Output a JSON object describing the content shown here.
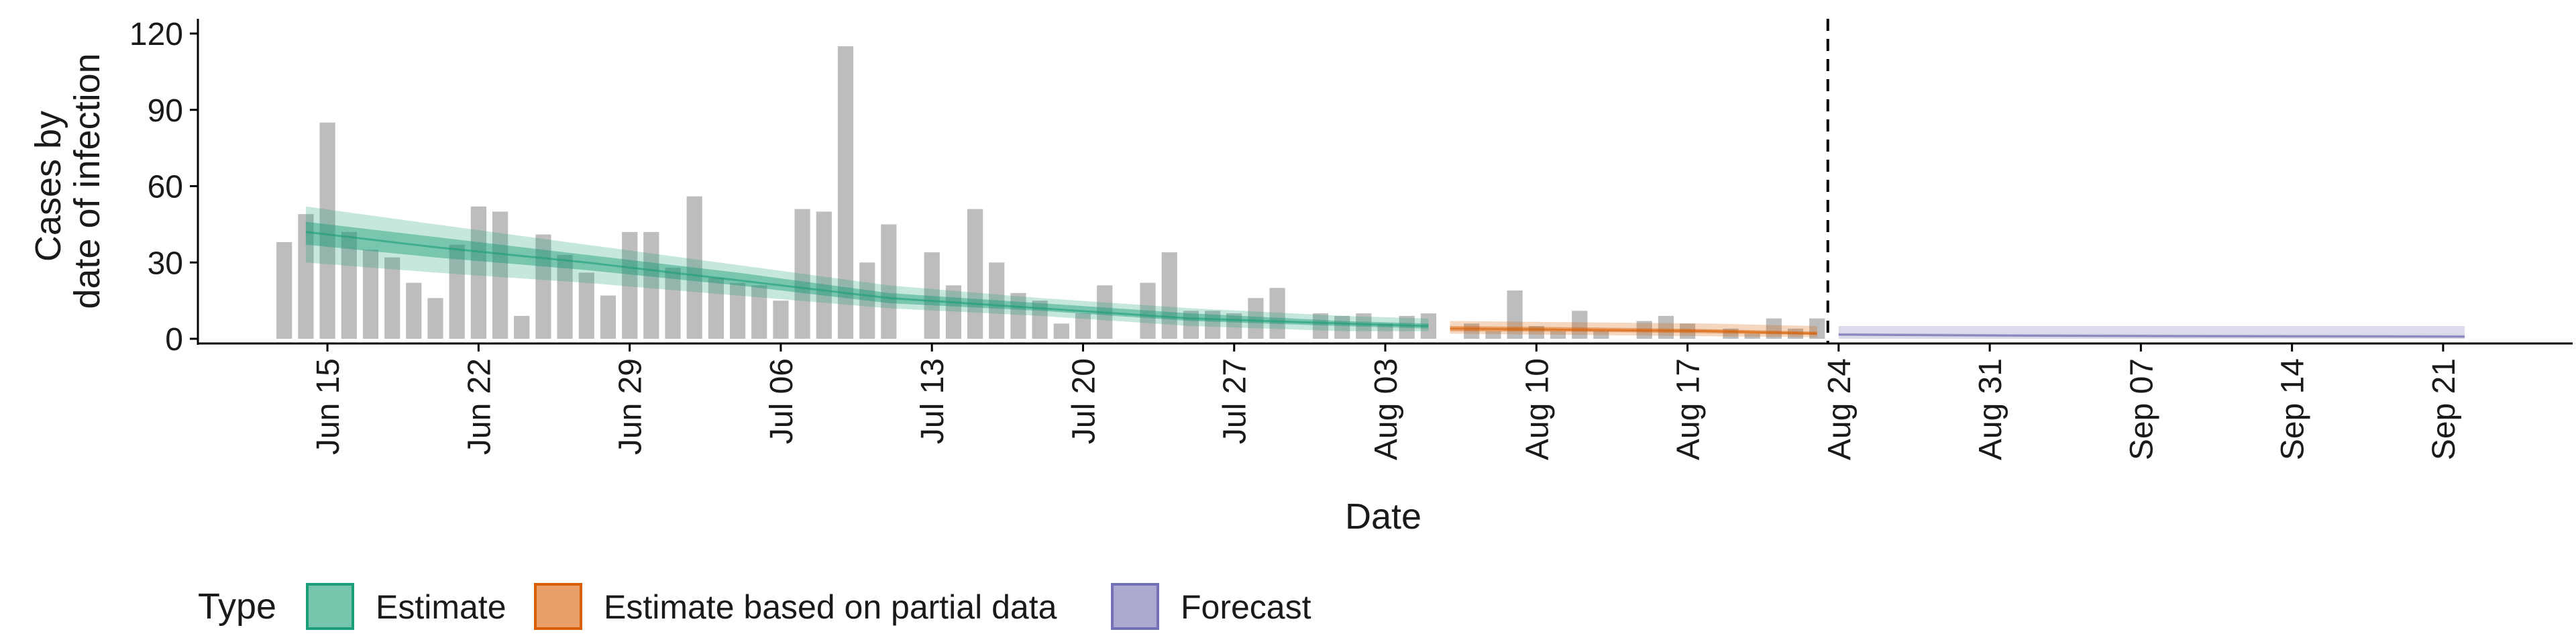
{
  "chart_data": {
    "type": "bar",
    "xlabel": "Date",
    "ylabel_lines": [
      "Cases by",
      "date of infection"
    ],
    "ylim": [
      0,
      120
    ],
    "yticks": [
      0,
      30,
      60,
      90,
      120
    ],
    "x_range": [
      "2020-06-09",
      "2020-09-27"
    ],
    "xticks": [
      {
        "date": "2020-06-15",
        "label": "Jun 15"
      },
      {
        "date": "2020-06-22",
        "label": "Jun 22"
      },
      {
        "date": "2020-06-29",
        "label": "Jun 29"
      },
      {
        "date": "2020-07-06",
        "label": "Jul 06"
      },
      {
        "date": "2020-07-13",
        "label": "Jul 13"
      },
      {
        "date": "2020-07-20",
        "label": "Jul 20"
      },
      {
        "date": "2020-07-27",
        "label": "Jul 27"
      },
      {
        "date": "2020-08-03",
        "label": "Aug 03"
      },
      {
        "date": "2020-08-10",
        "label": "Aug 10"
      },
      {
        "date": "2020-08-17",
        "label": "Aug 17"
      },
      {
        "date": "2020-08-24",
        "label": "Aug 24"
      },
      {
        "date": "2020-08-31",
        "label": "Aug 31"
      },
      {
        "date": "2020-09-07",
        "label": "Sep 07"
      },
      {
        "date": "2020-09-14",
        "label": "Sep 14"
      },
      {
        "date": "2020-09-21",
        "label": "Sep 21"
      }
    ],
    "bars": {
      "color": "#bdbdbd",
      "x": [
        "2020-06-13",
        "2020-06-14",
        "2020-06-15",
        "2020-06-16",
        "2020-06-17",
        "2020-06-18",
        "2020-06-19",
        "2020-06-20",
        "2020-06-21",
        "2020-06-22",
        "2020-06-23",
        "2020-06-24",
        "2020-06-25",
        "2020-06-26",
        "2020-06-27",
        "2020-06-28",
        "2020-06-29",
        "2020-06-30",
        "2020-07-01",
        "2020-07-02",
        "2020-07-03",
        "2020-07-04",
        "2020-07-05",
        "2020-07-06",
        "2020-07-07",
        "2020-07-08",
        "2020-07-09",
        "2020-07-10",
        "2020-07-11",
        "2020-07-12",
        "2020-07-13",
        "2020-07-14",
        "2020-07-15",
        "2020-07-16",
        "2020-07-17",
        "2020-07-18",
        "2020-07-19",
        "2020-07-20",
        "2020-07-21",
        "2020-07-22",
        "2020-07-23",
        "2020-07-24",
        "2020-07-25",
        "2020-07-26",
        "2020-07-27",
        "2020-07-28",
        "2020-07-29",
        "2020-07-30",
        "2020-07-31",
        "2020-08-01",
        "2020-08-02",
        "2020-08-03",
        "2020-08-04",
        "2020-08-05",
        "2020-08-06",
        "2020-08-07",
        "2020-08-08",
        "2020-08-09",
        "2020-08-10",
        "2020-08-11",
        "2020-08-12",
        "2020-08-13",
        "2020-08-14",
        "2020-08-15",
        "2020-08-16",
        "2020-08-17",
        "2020-08-18",
        "2020-08-19",
        "2020-08-20",
        "2020-08-21",
        "2020-08-22",
        "2020-08-23"
      ],
      "values": [
        38,
        49,
        85,
        42,
        35,
        32,
        22,
        16,
        37,
        52,
        50,
        9,
        41,
        33,
        26,
        17,
        42,
        42,
        28,
        56,
        24,
        22,
        21,
        15,
        51,
        50,
        115,
        30,
        45,
        0,
        34,
        21,
        51,
        30,
        18,
        15,
        6,
        10,
        21,
        0,
        22,
        34,
        11,
        11,
        10,
        16,
        20,
        0,
        10,
        9,
        10,
        6,
        9,
        10,
        0,
        6,
        3,
        19,
        5,
        3,
        11,
        3,
        0,
        7,
        9,
        6,
        0,
        4,
        2,
        8,
        4,
        8
      ]
    },
    "series": [
      {
        "name": "Estimate",
        "color": "#1b9e77",
        "x": [
          "2020-06-14",
          "2020-06-20",
          "2020-06-27",
          "2020-07-04",
          "2020-07-11",
          "2020-07-18",
          "2020-07-25",
          "2020-08-01",
          "2020-08-05"
        ],
        "median": [
          42,
          36,
          30,
          23,
          16,
          12,
          8,
          6,
          5
        ],
        "lower50": [
          37,
          32,
          27,
          21,
          14,
          11,
          7,
          5,
          4
        ],
        "upper50": [
          46,
          40,
          33,
          26,
          18,
          14,
          10,
          7,
          6
        ],
        "lower90": [
          30,
          26,
          22,
          17,
          12,
          9,
          5,
          3,
          3
        ],
        "upper90": [
          52,
          45,
          37,
          29,
          21,
          16,
          12,
          9,
          8
        ]
      },
      {
        "name": "Estimate based on partial data",
        "color": "#d95f02",
        "x": [
          "2020-08-06",
          "2020-08-12",
          "2020-08-18",
          "2020-08-23"
        ],
        "median": [
          4,
          3.5,
          3,
          2
        ],
        "lower50": [
          3,
          2.8,
          2.2,
          1.5
        ],
        "upper50": [
          5,
          4.5,
          3.8,
          2.8
        ],
        "lower90": [
          2,
          1.5,
          1,
          0.6
        ],
        "upper90": [
          7,
          6.5,
          6,
          5
        ]
      },
      {
        "name": "Forecast",
        "color": "#7570b3",
        "x": [
          "2020-08-24",
          "2020-09-01",
          "2020-09-08",
          "2020-09-15",
          "2020-09-22"
        ],
        "median": [
          1.6,
          1.2,
          1.0,
          0.9,
          0.8
        ],
        "lower50": [
          1.2,
          0.9,
          0.7,
          0.6,
          0.5
        ],
        "upper50": [
          2.2,
          1.8,
          1.6,
          1.5,
          1.4
        ],
        "lower90": [
          0,
          0,
          0,
          0,
          0
        ],
        "upper90": [
          5,
          5,
          5,
          5,
          5
        ]
      }
    ],
    "vline": {
      "date": "2020-08-23",
      "style": "dashed"
    },
    "legend": {
      "title": "Type",
      "position": "bottom-left",
      "items": [
        "Estimate",
        "Estimate based on partial data",
        "Forecast"
      ]
    },
    "grid": false
  }
}
